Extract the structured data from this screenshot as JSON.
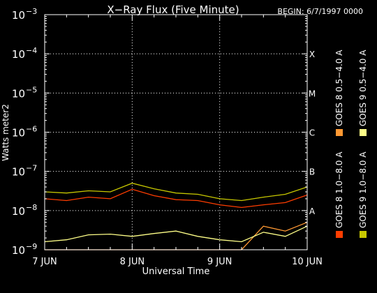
{
  "chart_data": {
    "type": "line",
    "title": "X−Ray Flux (Five Minute)",
    "begin_label": "BEGIN: 6/7/1997 0000",
    "xlabel": "Universal Time",
    "ylabel": "Watts meter2",
    "x_ticks": [
      "7 JUN",
      "8 JUN",
      "9 JUN",
      "10 JUN"
    ],
    "xlim": [
      "1997-06-07T00:00",
      "1997-06-10T00:00"
    ],
    "y_scale": "log",
    "ylim": [
      1e-09,
      0.001
    ],
    "y_tick_labels": [
      {
        "base": "10",
        "exp": "−9"
      },
      {
        "base": "10",
        "exp": "−8"
      },
      {
        "base": "10",
        "exp": "−7"
      },
      {
        "base": "10",
        "exp": "−6"
      },
      {
        "base": "10",
        "exp": "−5"
      },
      {
        "base": "10",
        "exp": "−4"
      },
      {
        "base": "10",
        "exp": "−3"
      }
    ],
    "flare_classes": [
      "A",
      "B",
      "C",
      "M",
      "X"
    ],
    "grid": true,
    "legend_position": "right, vertical",
    "series": [
      {
        "name": "GOES 8 1.0−8.0 A",
        "color": "#ff3d00",
        "x": [
          "1997-06-07T00:00",
          "1997-06-07T06:00",
          "1997-06-07T12:00",
          "1997-06-07T18:00",
          "1997-06-08T00:00",
          "1997-06-08T06:00",
          "1997-06-08T12:00",
          "1997-06-08T18:00",
          "1997-06-09T00:00",
          "1997-06-09T06:00",
          "1997-06-09T12:00",
          "1997-06-09T18:00",
          "1997-06-10T00:00"
        ],
        "values": [
          2e-08,
          1.8e-08,
          2.2e-08,
          2e-08,
          3.5e-08,
          2.4e-08,
          1.9e-08,
          1.8e-08,
          1.4e-08,
          1.2e-08,
          1.4e-08,
          1.6e-08,
          2.5e-08
        ]
      },
      {
        "name": "GOES 8 0.5−4.0 A",
        "color": "#ff9933",
        "x": [
          "1997-06-07T00:00",
          "1997-06-07T06:00",
          "1997-06-07T12:00",
          "1997-06-07T18:00",
          "1997-06-08T00:00",
          "1997-06-08T06:00",
          "1997-06-08T12:00",
          "1997-06-08T18:00",
          "1997-06-09T00:00",
          "1997-06-09T06:00",
          "1997-06-09T12:00",
          "1997-06-09T18:00",
          "1997-06-10T00:00"
        ],
        "values": [
          1e-09,
          1e-09,
          1e-09,
          1e-09,
          1e-09,
          1e-09,
          1e-09,
          1e-09,
          1e-09,
          1e-09,
          4e-09,
          3e-09,
          5e-09
        ]
      },
      {
        "name": "GOES 9 1.0−8.0 A",
        "color": "#c8c800",
        "x": [
          "1997-06-07T00:00",
          "1997-06-07T06:00",
          "1997-06-07T12:00",
          "1997-06-07T18:00",
          "1997-06-08T00:00",
          "1997-06-08T06:00",
          "1997-06-08T12:00",
          "1997-06-08T18:00",
          "1997-06-09T00:00",
          "1997-06-09T06:00",
          "1997-06-09T12:00",
          "1997-06-09T18:00",
          "1997-06-10T00:00"
        ],
        "values": [
          3e-08,
          2.8e-08,
          3.2e-08,
          3e-08,
          5e-08,
          3.6e-08,
          2.8e-08,
          2.6e-08,
          2e-08,
          1.8e-08,
          2.2e-08,
          2.6e-08,
          4e-08
        ]
      },
      {
        "name": "GOES 9 0.5−4.0 A",
        "color": "#ffff88",
        "x": [
          "1997-06-07T00:00",
          "1997-06-07T06:00",
          "1997-06-07T12:00",
          "1997-06-07T18:00",
          "1997-06-08T00:00",
          "1997-06-08T06:00",
          "1997-06-08T12:00",
          "1997-06-08T18:00",
          "1997-06-09T00:00",
          "1997-06-09T06:00",
          "1997-06-09T12:00",
          "1997-06-09T18:00",
          "1997-06-10T00:00"
        ],
        "values": [
          1.6e-09,
          1.8e-09,
          2.4e-09,
          2.5e-09,
          2.2e-09,
          2.6e-09,
          3e-09,
          2.2e-09,
          1.8e-09,
          1.6e-09,
          2.8e-09,
          2.2e-09,
          4e-09
        ]
      }
    ]
  }
}
